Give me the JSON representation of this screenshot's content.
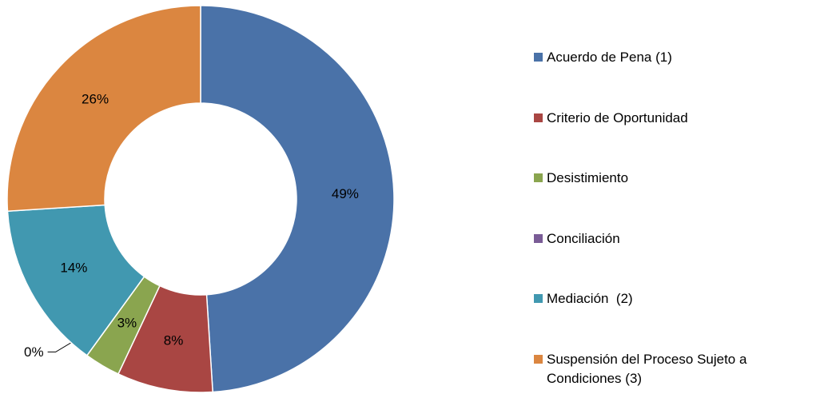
{
  "chart_data": {
    "type": "donut",
    "categories": [
      "Acuerdo de Pena (1)",
      "Criterio de Oportunidad",
      "Desistimiento",
      "Conciliación",
      "Mediación  (2)",
      "Suspensión del Proceso Sujeto a Condiciones (3)"
    ],
    "values": [
      49,
      8,
      3,
      0,
      14,
      26
    ],
    "value_labels": [
      "49%",
      "8%",
      "3%",
      "0%",
      "14%",
      "26%"
    ],
    "colors": [
      "#4a72a8",
      "#a94643",
      "#8aa54f",
      "#7a5c96",
      "#4198b0",
      "#db8640"
    ],
    "legend": "right"
  }
}
